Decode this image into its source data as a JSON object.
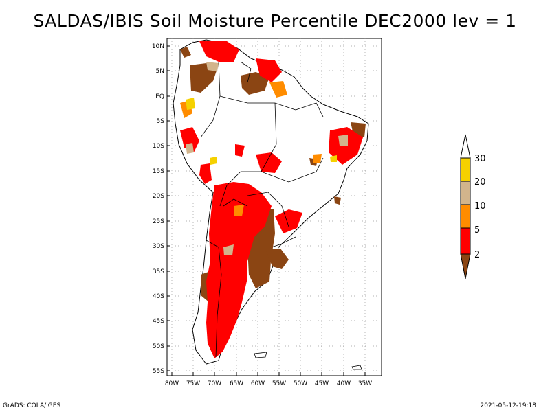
{
  "title": "SALDAS/IBIS Soil Moisture Percentile DEC2000 lev = 1",
  "footer": {
    "left": "GrADS: COLA/IGES",
    "right": "2021-05-12-19:18"
  },
  "axes": {
    "lat_labels": [
      "10N",
      "5N",
      "EQ",
      "5S",
      "10S",
      "15S",
      "20S",
      "25S",
      "30S",
      "35S",
      "40S",
      "45S",
      "50S",
      "55S"
    ],
    "lon_labels": [
      "80W",
      "75W",
      "70W",
      "65W",
      "60W",
      "55W",
      "50W",
      "45W",
      "40W",
      "35W"
    ]
  },
  "legend": {
    "levels": [
      {
        "value": "30",
        "color": "#ffffff"
      },
      {
        "value": "20",
        "color": "#f5d100"
      },
      {
        "value": "10",
        "color": "#d2b48c"
      },
      {
        "value": "5",
        "color": "#ff8c00"
      },
      {
        "value": "2",
        "color": "#ff0000"
      },
      {
        "value": "",
        "color": "#8b4513"
      }
    ]
  },
  "colors": {
    "below_2": "#8b4513",
    "p2_5": "#ff0000",
    "p5_10": "#ff8c00",
    "p10_20": "#d2b48c",
    "p20_30": "#f5d100",
    "above_30": "#ffffff"
  }
}
